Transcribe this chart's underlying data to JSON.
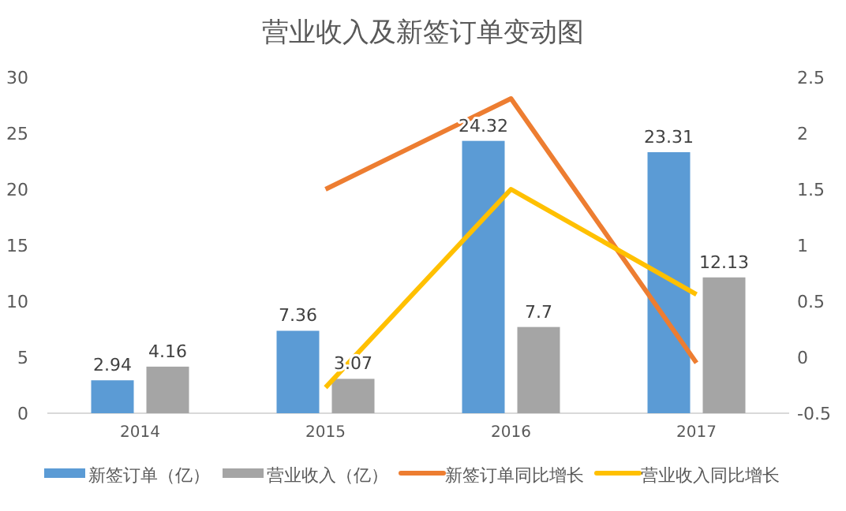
{
  "chart_data": {
    "type": "bar",
    "title": "营业收入及新签订单变动图",
    "categories": [
      "2014",
      "2015",
      "2016",
      "2017"
    ],
    "series": [
      {
        "name": "新签订单（亿）",
        "color": "#5b9bd5",
        "values": [
          2.94,
          7.36,
          24.32,
          23.31
        ],
        "value_labels": [
          "2.94",
          "7.36",
          "24.32",
          "23.31"
        ]
      },
      {
        "name": "营业收入（亿）",
        "color": "#a5a5a5",
        "values": [
          4.16,
          3.07,
          7.7,
          12.13
        ],
        "value_labels": [
          "4.16",
          "3.07",
          "7.7",
          "12.13"
        ]
      },
      {
        "name": "新签订单同比增长",
        "type": "line",
        "axis": "y2",
        "color": "#ed7d31",
        "values": [
          null,
          1.5,
          2.31,
          -0.05
        ]
      },
      {
        "name": "营业收入同比增长",
        "type": "line",
        "axis": "y2",
        "color": "#ffc000",
        "values": [
          null,
          -0.27,
          1.5,
          0.56
        ]
      }
    ],
    "ylim": [
      0,
      30
    ],
    "yticks": [
      0,
      5,
      10,
      15,
      20,
      25,
      30
    ],
    "y2lim": [
      -0.5,
      2.5
    ],
    "y2ticks": [
      -0.5,
      0,
      0.5,
      1,
      1.5,
      2,
      2.5
    ],
    "legend": "bottom",
    "grid": false
  }
}
